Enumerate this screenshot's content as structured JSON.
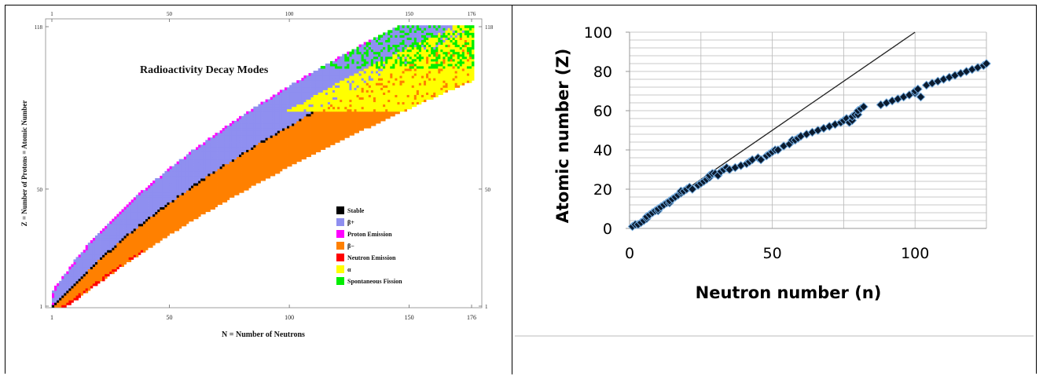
{
  "chart_data": [
    {
      "type": "heatmap",
      "title": "Radioactivity Decay Modes",
      "xlabel": "N = Number of Neutrons",
      "ylabel": "Z = Number of Protons = Atomic Number",
      "xticks": [
        "1",
        "50",
        "100",
        "150",
        "176"
      ],
      "yticks": [
        "1",
        "50",
        "118"
      ],
      "xlim": [
        1,
        176
      ],
      "ylim": [
        1,
        118
      ],
      "legend_position": "lower-right",
      "legend": [
        {
          "label": "Stable",
          "color": "#000000"
        },
        {
          "label": "β+",
          "color": "#8f8ff0"
        },
        {
          "label": "Proton Emission",
          "color": "#ff00ff"
        },
        {
          "label": "β−",
          "color": "#ff8000"
        },
        {
          "label": "Neutron Emission",
          "color": "#ff0000"
        },
        {
          "label": "α",
          "color": "#ffff00"
        },
        {
          "label": "Spontaneous Fission",
          "color": "#00ee00"
        }
      ]
    },
    {
      "type": "scatter",
      "xlabel": "Neutron number (n)",
      "ylabel": "Atomic number (Z)",
      "xlim": [
        0,
        125
      ],
      "ylim": [
        0,
        100
      ],
      "xticks": [
        0,
        50,
        100
      ],
      "yticks": [
        0,
        20,
        40,
        60,
        80,
        100
      ],
      "grid": true,
      "marker_color": "#0a1a2e",
      "marker_edge": "#6fa8dc",
      "reference_line": {
        "from": [
          0,
          0
        ],
        "to": [
          100,
          100
        ],
        "color": "#222222"
      },
      "series": [
        {
          "x": [
            1,
            2,
            3,
            4,
            5,
            6,
            6,
            7,
            8,
            9,
            10,
            10,
            11,
            12,
            13,
            14,
            14,
            15,
            16,
            17,
            18,
            18,
            19,
            20,
            20,
            21,
            22,
            24,
            25,
            26,
            27,
            28,
            28,
            29,
            30,
            31,
            32,
            33,
            34,
            35,
            37,
            39,
            41,
            42,
            43,
            45,
            46,
            48,
            49,
            50,
            51,
            52,
            54,
            56,
            57,
            58,
            59,
            60,
            62,
            64,
            66,
            68,
            70,
            72,
            74,
            75,
            76,
            77,
            78,
            78,
            79,
            80,
            80,
            81,
            82,
            88,
            90,
            92,
            94,
            96,
            98,
            100,
            100,
            101,
            102,
            104,
            106,
            108,
            110,
            112,
            114,
            116,
            118,
            120,
            122,
            124,
            125
          ],
          "y": [
            1,
            2,
            2,
            3,
            4,
            5,
            6,
            7,
            8,
            9,
            9,
            10,
            11,
            12,
            13,
            13,
            14,
            15,
            16,
            17,
            18,
            19,
            19,
            20,
            20,
            21,
            20,
            22,
            23,
            24,
            25,
            26,
            27,
            28,
            28,
            27,
            29,
            30,
            31,
            30,
            31,
            32,
            33,
            34,
            35,
            36,
            35,
            37,
            38,
            39,
            40,
            40,
            42,
            43,
            45,
            45,
            46,
            47,
            48,
            49,
            50,
            51,
            52,
            53,
            54,
            55,
            56,
            54,
            55,
            57,
            58,
            58,
            60,
            61,
            62,
            63,
            64,
            65,
            66,
            67,
            68,
            69,
            70,
            71,
            67,
            73,
            74,
            75,
            76,
            77,
            78,
            79,
            80,
            81,
            82,
            83,
            84
          ]
        }
      ]
    }
  ]
}
